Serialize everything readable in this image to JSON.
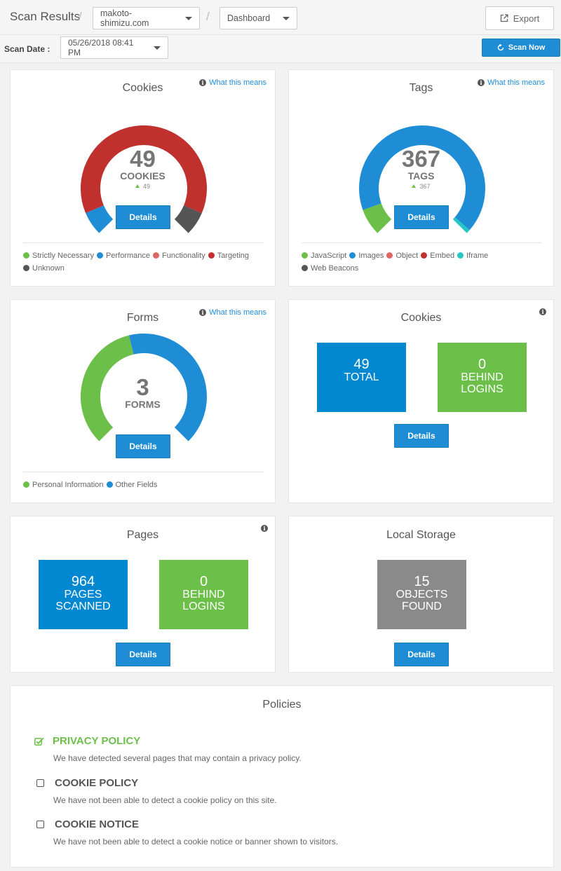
{
  "header": {
    "title": "Scan Results",
    "separator": "/",
    "site": "makoto-shimizu.com",
    "view": "Dashboard",
    "export_label": "Export"
  },
  "scanbar": {
    "label": "Scan Date :",
    "date": "05/26/2018 08:41 PM",
    "scan_now_label": "Scan Now"
  },
  "info_link_label": "What this means",
  "details_label": "Details",
  "colors": {
    "green": "#6cc04a",
    "blue": "#1f8dd6",
    "pink": "#e06666",
    "red": "#c0302d",
    "gray": "#555555",
    "teal": "#26c6c6",
    "box_blue": "#0288d1",
    "box_gray": "#8a8a8a"
  },
  "cookies_gauge": {
    "title": "Cookies",
    "value": "49",
    "unit": "COOKIES",
    "delta": "49",
    "segments": [
      {
        "label": "Strictly Necessary",
        "value": 0,
        "color": "#6cc04a"
      },
      {
        "label": "Performance",
        "value": 4,
        "color": "#1f8dd6"
      },
      {
        "label": "Functionality",
        "value": 0,
        "color": "#e06666"
      },
      {
        "label": "Targeting",
        "value": 41,
        "color": "#c0302d"
      },
      {
        "label": "Unknown",
        "value": 4,
        "color": "#555555"
      }
    ]
  },
  "tags_gauge": {
    "title": "Tags",
    "value": "367",
    "unit": "TAGS",
    "delta": "367",
    "segments": [
      {
        "label": "JavaScript",
        "value": 34,
        "color": "#6cc04a"
      },
      {
        "label": "Images",
        "value": 328,
        "color": "#1f8dd6"
      },
      {
        "label": "Object",
        "value": 0,
        "color": "#e06666"
      },
      {
        "label": "Embed",
        "value": 0,
        "color": "#c0302d"
      },
      {
        "label": "Iframe",
        "value": 5,
        "color": "#26c6c6"
      },
      {
        "label": "Web Beacons",
        "value": 0,
        "color": "#555555"
      }
    ]
  },
  "forms_gauge": {
    "title": "Forms",
    "value": "3",
    "unit": "FORMS",
    "segments": [
      {
        "label": "Personal Information",
        "value": 1.35,
        "color": "#6cc04a"
      },
      {
        "label": "Other Fields",
        "value": 1.65,
        "color": "#1f8dd6"
      }
    ]
  },
  "cookies_summary": {
    "title": "Cookies",
    "total_value": "49",
    "total_label": "TOTAL",
    "logins_value": "0",
    "logins_label": "BEHIND\nLOGINS"
  },
  "pages": {
    "title": "Pages",
    "scanned_value": "964",
    "scanned_label": "PAGES\nSCANNED",
    "logins_value": "0",
    "logins_label": "BEHIND\nLOGINS"
  },
  "local_storage": {
    "title": "Local Storage",
    "value": "15",
    "label": "OBJECTS\nFOUND"
  },
  "policies": {
    "title": "Policies",
    "items": [
      {
        "name": "PRIVACY POLICY",
        "detected": true,
        "description": "We have detected several pages that may contain a privacy policy."
      },
      {
        "name": "COOKIE POLICY",
        "detected": false,
        "description": "We have not been able to detect a cookie policy on this site."
      },
      {
        "name": "COOKIE NOTICE",
        "detected": false,
        "description": "We have not been able to detect a cookie notice or banner shown to visitors."
      }
    ]
  }
}
